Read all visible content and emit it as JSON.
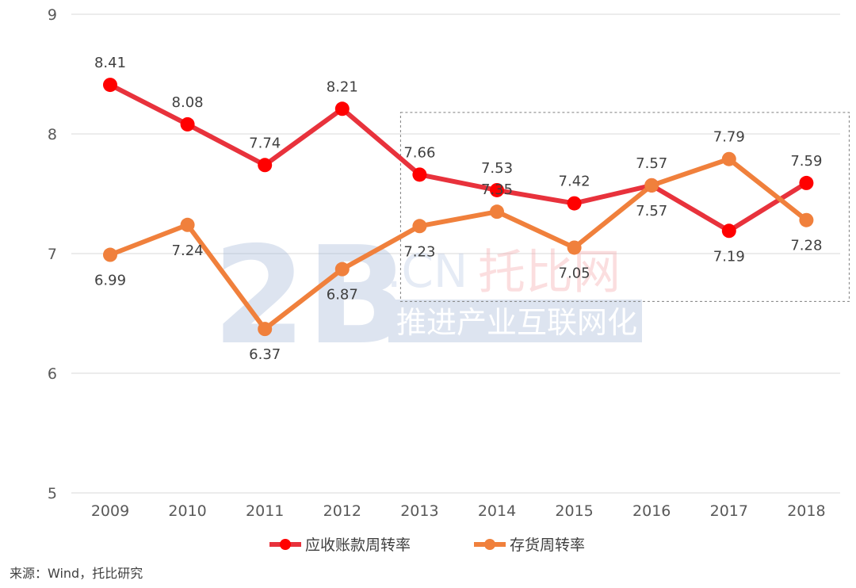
{
  "chart_data": {
    "type": "line",
    "categories": [
      "2009",
      "2010",
      "2011",
      "2012",
      "2013",
      "2014",
      "2015",
      "2016",
      "2017",
      "2018"
    ],
    "ylim": [
      5,
      9
    ],
    "yticks": [
      5,
      6,
      7,
      8,
      9
    ],
    "grid": true,
    "legend_position": "bottom",
    "series": [
      {
        "name": "应收账款周转率",
        "color": "#e8323c",
        "marker_color": "#ff0000",
        "values": [
          8.41,
          8.08,
          7.74,
          8.21,
          7.66,
          7.53,
          7.42,
          7.57,
          7.19,
          7.59
        ],
        "labels": [
          "8.41",
          "8.08",
          "7.74",
          "8.21",
          "7.66",
          "7.53",
          "7.42",
          "7.57",
          "7.19",
          "7.59"
        ],
        "label_pos": [
          "above",
          "above",
          "above",
          "above",
          "above",
          "above",
          "above",
          "above",
          "below",
          "above"
        ]
      },
      {
        "name": "存货周转率",
        "color": "#f0803c",
        "marker_color": "#f0803c",
        "values": [
          6.99,
          7.24,
          6.37,
          6.87,
          7.23,
          7.35,
          7.05,
          7.57,
          7.79,
          7.28
        ],
        "labels": [
          "6.99",
          "7.24",
          "6.37",
          "6.87",
          "7.23",
          "7.35",
          "7.05",
          "7.57",
          "7.79",
          "7.28"
        ],
        "label_pos": [
          "below",
          "below",
          "below",
          "below",
          "below",
          "above",
          "below",
          "below",
          "above",
          "below"
        ]
      }
    ],
    "highlight_range": {
      "from": "2013",
      "to": "2018",
      "y_from": 6.6,
      "y_to": 8.18
    }
  },
  "watermark": {
    "logo": "2B",
    "domain": ".CN",
    "brand": "托比网",
    "slogan": "推进产业互联网化"
  },
  "source_text": "来源：Wind，托比研究"
}
